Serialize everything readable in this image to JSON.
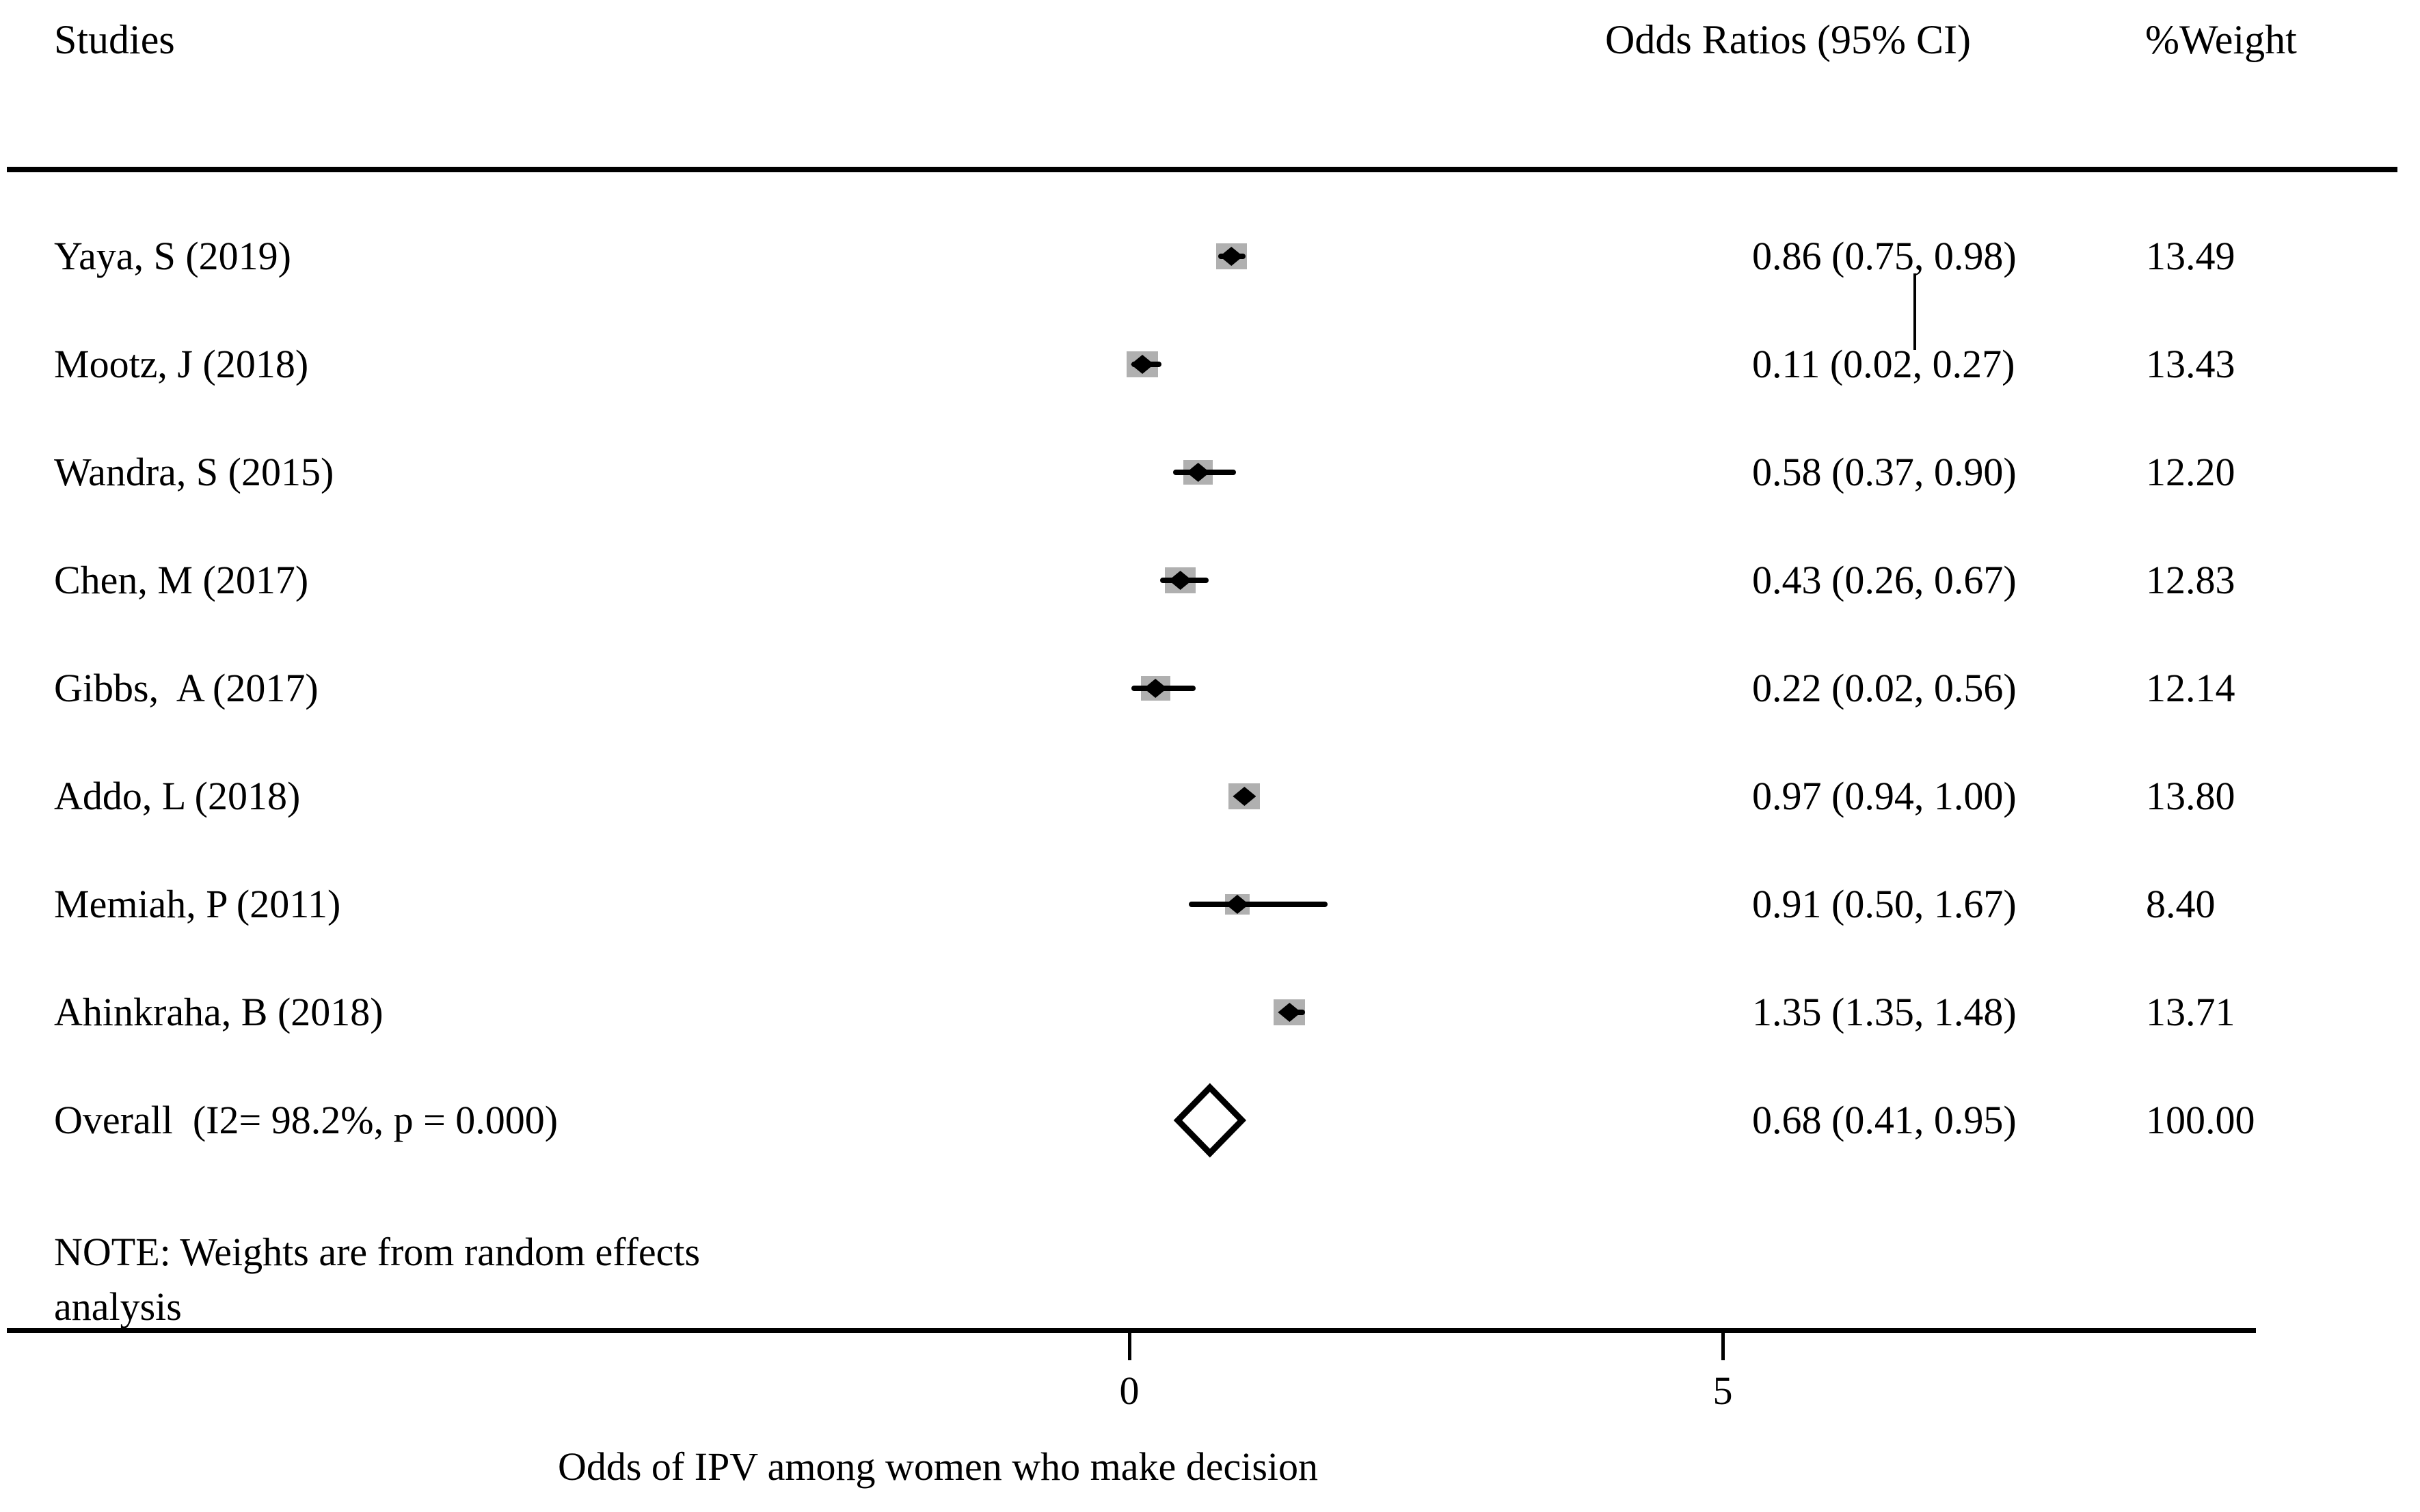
{
  "header": {
    "studies": "Studies",
    "or_ci": "Odds Ratios (95% CI)",
    "weight": "%Weight"
  },
  "chart_data": {
    "type": "forest",
    "xlabel": "Odds of IPV among women who make decision",
    "x_axis": {
      "ticks": [
        0,
        5
      ]
    },
    "studies": [
      {
        "label": "Yaya, S (2019)",
        "or": 0.86,
        "ci_low": 0.75,
        "ci_high": 0.98,
        "or_ci_text": "0.86 (0.75, 0.98)",
        "weight": 13.49,
        "weight_text": "13.49"
      },
      {
        "label": "Mootz, J (2018)",
        "or": 0.11,
        "ci_low": 0.02,
        "ci_high": 0.27,
        "or_ci_text": "0.11 (0.02, 0.27)",
        "weight": 13.43,
        "weight_text": "13.43"
      },
      {
        "label": "Wandra, S (2015)",
        "or": 0.58,
        "ci_low": 0.37,
        "ci_high": 0.9,
        "or_ci_text": "0.58 (0.37, 0.90)",
        "weight": 12.2,
        "weight_text": "12.20"
      },
      {
        "label": "Chen, M (2017)",
        "or": 0.43,
        "ci_low": 0.26,
        "ci_high": 0.67,
        "or_ci_text": "0.43 (0.26, 0.67)",
        "weight": 12.83,
        "weight_text": "12.83"
      },
      {
        "label": "Gibbs,  A (2017)",
        "or": 0.22,
        "ci_low": 0.02,
        "ci_high": 0.56,
        "or_ci_text": "0.22 (0.02, 0.56)",
        "weight": 12.14,
        "weight_text": "12.14"
      },
      {
        "label": "Addo, L (2018)",
        "or": 0.97,
        "ci_low": 0.94,
        "ci_high": 1.0,
        "or_ci_text": "0.97 (0.94, 1.00)",
        "weight": 13.8,
        "weight_text": "13.80"
      },
      {
        "label": "Memiah, P (2011)",
        "or": 0.91,
        "ci_low": 0.5,
        "ci_high": 1.67,
        "or_ci_text": "0.91 (0.50, 1.67)",
        "weight": 8.4,
        "weight_text": "8.40"
      },
      {
        "label": "Ahinkraha, B (2018)",
        "or": 1.35,
        "ci_low": 1.35,
        "ci_high": 1.48,
        "or_ci_text": "1.35 (1.35, 1.48)",
        "weight": 13.71,
        "weight_text": "13.71"
      }
    ],
    "overall": {
      "label": "Overall  (I2= 98.2%, p = 0.000)",
      "or": 0.68,
      "ci_low": 0.41,
      "ci_high": 0.95,
      "or_ci_text": "0.68 (0.41, 0.95)",
      "weight_text": "100.00"
    },
    "note_line1": "NOTE: Weights are from random effects",
    "note_line2": "analysis",
    "colors": {
      "marker": "#000000",
      "weight_box": "#b0b0b0",
      "text": "#000000",
      "background": "#ffffff"
    }
  }
}
